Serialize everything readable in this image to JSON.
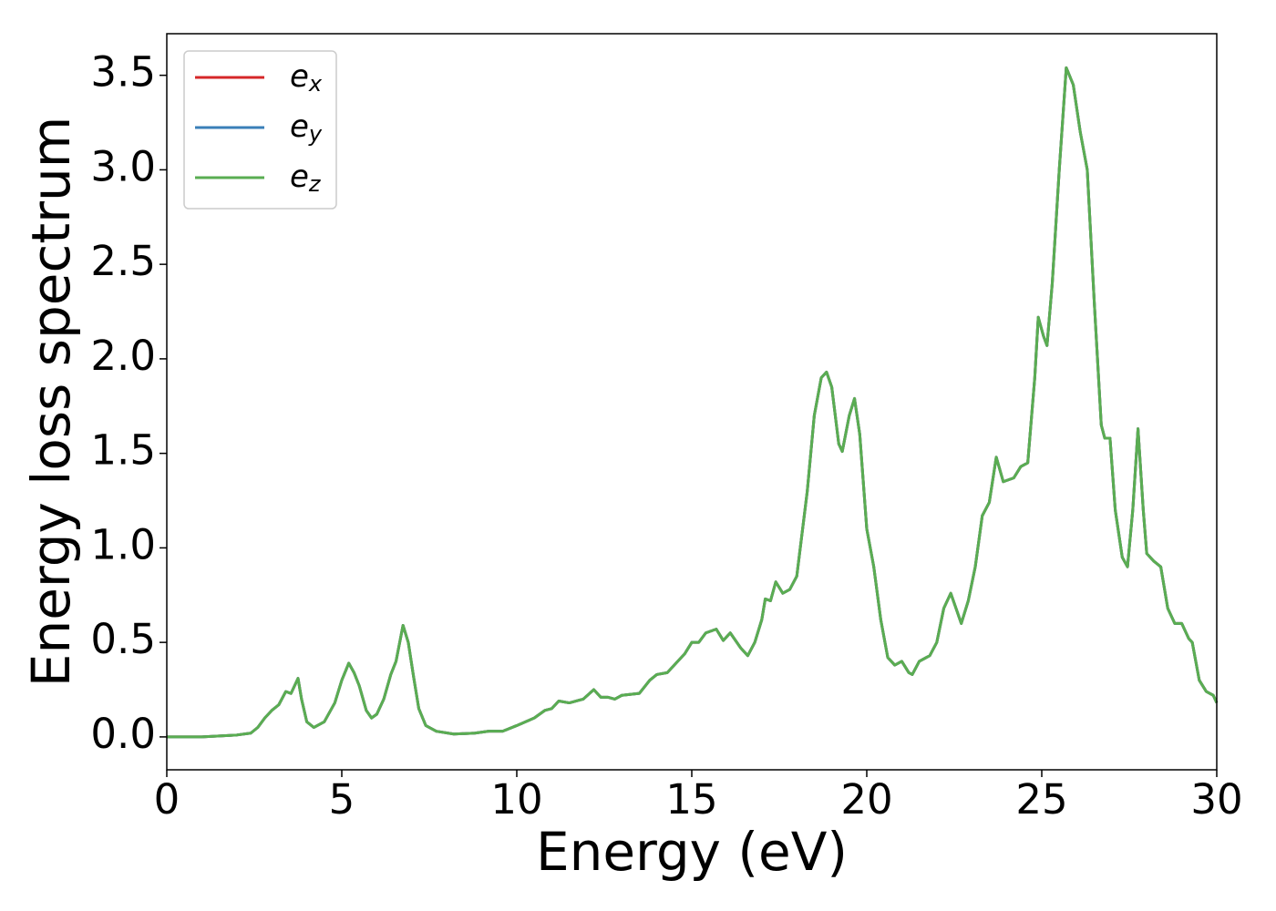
{
  "chart_data": {
    "type": "line",
    "xlabel": "Energy (eV)",
    "ylabel": "Energy loss spectrum",
    "x": [
      0,
      1,
      2,
      2.4,
      2.6,
      2.8,
      3.0,
      3.2,
      3.4,
      3.55,
      3.75,
      3.85,
      4.0,
      4.2,
      4.5,
      4.8,
      5.0,
      5.2,
      5.35,
      5.5,
      5.7,
      5.85,
      6.0,
      6.2,
      6.4,
      6.55,
      6.75,
      6.9,
      7.05,
      7.2,
      7.4,
      7.7,
      8.2,
      8.8,
      9.2,
      9.6,
      10.0,
      10.5,
      10.8,
      11.0,
      11.2,
      11.5,
      11.9,
      12.2,
      12.4,
      12.6,
      12.8,
      13.0,
      13.5,
      13.8,
      14.0,
      14.3,
      14.6,
      14.8,
      15.0,
      15.2,
      15.4,
      15.7,
      15.9,
      16.1,
      16.4,
      16.6,
      16.8,
      17.0,
      17.1,
      17.25,
      17.4,
      17.6,
      17.8,
      18.0,
      18.3,
      18.5,
      18.7,
      18.85,
      19.0,
      19.2,
      19.3,
      19.5,
      19.65,
      19.8,
      20.0,
      20.2,
      20.4,
      20.6,
      20.8,
      21.0,
      21.2,
      21.3,
      21.5,
      21.8,
      22.0,
      22.2,
      22.4,
      22.55,
      22.7,
      22.9,
      23.1,
      23.3,
      23.5,
      23.7,
      23.9,
      24.2,
      24.4,
      24.6,
      24.8,
      24.9,
      25.05,
      25.15,
      25.3,
      25.5,
      25.7,
      25.9,
      26.1,
      26.3,
      26.5,
      26.7,
      26.8,
      26.95,
      27.1,
      27.3,
      27.45,
      27.6,
      27.75,
      27.9,
      28.0,
      28.2,
      28.4,
      28.6,
      28.8,
      29.0,
      29.2,
      29.3,
      29.5,
      29.7,
      29.9,
      30.0
    ],
    "series": [
      {
        "name": "ex",
        "color": "#d62728",
        "values": [
          0,
          0,
          0.01,
          0.02,
          0.05,
          0.1,
          0.14,
          0.17,
          0.24,
          0.23,
          0.31,
          0.2,
          0.08,
          0.05,
          0.08,
          0.18,
          0.3,
          0.39,
          0.34,
          0.27,
          0.14,
          0.1,
          0.12,
          0.2,
          0.33,
          0.4,
          0.59,
          0.5,
          0.32,
          0.15,
          0.06,
          0.03,
          0.015,
          0.02,
          0.03,
          0.03,
          0.06,
          0.1,
          0.14,
          0.15,
          0.19,
          0.18,
          0.2,
          0.25,
          0.21,
          0.21,
          0.2,
          0.22,
          0.23,
          0.3,
          0.33,
          0.34,
          0.4,
          0.44,
          0.5,
          0.5,
          0.55,
          0.57,
          0.51,
          0.55,
          0.47,
          0.43,
          0.5,
          0.62,
          0.73,
          0.72,
          0.82,
          0.76,
          0.78,
          0.85,
          1.3,
          1.7,
          1.9,
          1.93,
          1.85,
          1.55,
          1.51,
          1.7,
          1.79,
          1.6,
          1.1,
          0.9,
          0.62,
          0.42,
          0.38,
          0.4,
          0.34,
          0.33,
          0.4,
          0.43,
          0.5,
          0.68,
          0.76,
          0.68,
          0.6,
          0.72,
          0.9,
          1.17,
          1.24,
          1.48,
          1.35,
          1.37,
          1.43,
          1.45,
          1.9,
          2.22,
          2.12,
          2.07,
          2.4,
          3.0,
          3.54,
          3.45,
          3.2,
          3.0,
          2.3,
          1.65,
          1.58,
          1.58,
          1.2,
          0.95,
          0.9,
          1.2,
          1.63,
          1.2,
          0.97,
          0.93,
          0.9,
          0.68,
          0.6,
          0.6,
          0.52,
          0.5,
          0.3,
          0.24,
          0.22,
          0.18
        ]
      },
      {
        "name": "ey",
        "color": "#3a7fb8",
        "values": [
          0,
          0,
          0.01,
          0.02,
          0.05,
          0.1,
          0.14,
          0.17,
          0.24,
          0.23,
          0.31,
          0.2,
          0.08,
          0.05,
          0.08,
          0.18,
          0.3,
          0.39,
          0.34,
          0.27,
          0.14,
          0.1,
          0.12,
          0.2,
          0.33,
          0.4,
          0.59,
          0.5,
          0.32,
          0.15,
          0.06,
          0.03,
          0.015,
          0.02,
          0.03,
          0.03,
          0.06,
          0.1,
          0.14,
          0.15,
          0.19,
          0.18,
          0.2,
          0.25,
          0.21,
          0.21,
          0.2,
          0.22,
          0.23,
          0.3,
          0.33,
          0.34,
          0.4,
          0.44,
          0.5,
          0.5,
          0.55,
          0.57,
          0.51,
          0.55,
          0.47,
          0.43,
          0.5,
          0.62,
          0.73,
          0.72,
          0.82,
          0.76,
          0.78,
          0.85,
          1.3,
          1.7,
          1.9,
          1.93,
          1.85,
          1.55,
          1.51,
          1.7,
          1.79,
          1.6,
          1.1,
          0.9,
          0.62,
          0.42,
          0.38,
          0.4,
          0.34,
          0.33,
          0.4,
          0.43,
          0.5,
          0.68,
          0.76,
          0.68,
          0.6,
          0.72,
          0.9,
          1.17,
          1.24,
          1.48,
          1.35,
          1.37,
          1.43,
          1.45,
          1.9,
          2.22,
          2.12,
          2.07,
          2.4,
          3.0,
          3.54,
          3.45,
          3.2,
          3.0,
          2.3,
          1.65,
          1.58,
          1.58,
          1.2,
          0.95,
          0.9,
          1.2,
          1.63,
          1.2,
          0.97,
          0.93,
          0.9,
          0.68,
          0.6,
          0.6,
          0.52,
          0.5,
          0.3,
          0.24,
          0.22,
          0.18
        ]
      },
      {
        "name": "ez",
        "color": "#5aad52",
        "values": [
          0,
          0,
          0.01,
          0.02,
          0.05,
          0.1,
          0.14,
          0.17,
          0.24,
          0.23,
          0.31,
          0.2,
          0.08,
          0.05,
          0.08,
          0.18,
          0.3,
          0.39,
          0.34,
          0.27,
          0.14,
          0.1,
          0.12,
          0.2,
          0.33,
          0.4,
          0.59,
          0.5,
          0.32,
          0.15,
          0.06,
          0.03,
          0.015,
          0.02,
          0.03,
          0.03,
          0.06,
          0.1,
          0.14,
          0.15,
          0.19,
          0.18,
          0.2,
          0.25,
          0.21,
          0.21,
          0.2,
          0.22,
          0.23,
          0.3,
          0.33,
          0.34,
          0.4,
          0.44,
          0.5,
          0.5,
          0.55,
          0.57,
          0.51,
          0.55,
          0.47,
          0.43,
          0.5,
          0.62,
          0.73,
          0.72,
          0.82,
          0.76,
          0.78,
          0.85,
          1.3,
          1.7,
          1.9,
          1.93,
          1.85,
          1.55,
          1.51,
          1.7,
          1.79,
          1.6,
          1.1,
          0.9,
          0.62,
          0.42,
          0.38,
          0.4,
          0.34,
          0.33,
          0.4,
          0.43,
          0.5,
          0.68,
          0.76,
          0.68,
          0.6,
          0.72,
          0.9,
          1.17,
          1.24,
          1.48,
          1.35,
          1.37,
          1.43,
          1.45,
          1.9,
          2.22,
          2.12,
          2.07,
          2.4,
          3.0,
          3.54,
          3.45,
          3.2,
          3.0,
          2.3,
          1.65,
          1.58,
          1.58,
          1.2,
          0.95,
          0.9,
          1.2,
          1.63,
          1.2,
          0.97,
          0.93,
          0.9,
          0.68,
          0.6,
          0.6,
          0.52,
          0.5,
          0.3,
          0.24,
          0.22,
          0.18
        ]
      }
    ],
    "xlim": [
      0,
      30
    ],
    "xticks": [
      0,
      5,
      10,
      15,
      20,
      25,
      30
    ],
    "ylim": [
      -0.174,
      3.72
    ],
    "yticks": [
      {
        "value": 0,
        "label": "0.0"
      },
      0.5,
      {
        "value": 1,
        "label": "1.0"
      },
      1.5,
      {
        "value": 2,
        "label": "2.0"
      },
      2.5,
      {
        "value": 3,
        "label": "3.0"
      },
      3.5
    ],
    "grid": false,
    "legend": "upper left"
  }
}
